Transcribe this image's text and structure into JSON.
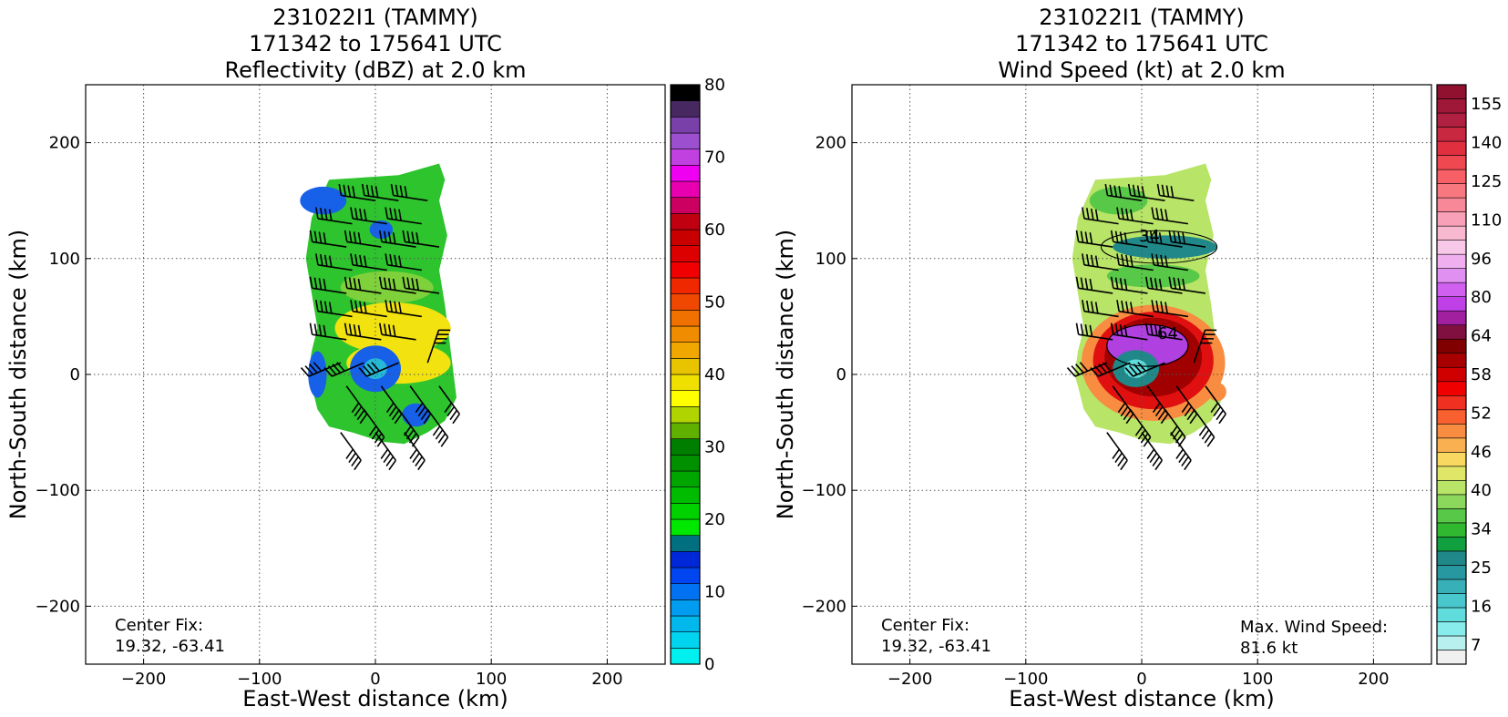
{
  "chart_data": [
    {
      "type": "heatmap",
      "title_lines": [
        "231022I1 (TAMMY)",
        "171342 to 175641 UTC",
        "Reflectivity (dBZ) at 2.0 km"
      ],
      "xlabel": "East-West distance (km)",
      "ylabel": "North-South distance (km)",
      "xlim": [
        -250,
        250
      ],
      "ylim": [
        -250,
        250
      ],
      "xticks": [
        -200,
        -100,
        0,
        100,
        200
      ],
      "yticks": [
        -200,
        -100,
        0,
        100,
        200
      ],
      "xtick_labels": [
        "−200",
        "−100",
        "0",
        "100",
        "200"
      ],
      "ytick_labels": [
        "−200",
        "−100",
        "0",
        "100",
        "200"
      ],
      "grid": true,
      "center_fix_label": "Center Fix:",
      "center_fix_value": "19.32, -63.41",
      "colorbar": {
        "min": 0,
        "max": 80,
        "tick_values": [
          0,
          10,
          20,
          30,
          40,
          50,
          60,
          70,
          80
        ],
        "tick_labels": [
          "0",
          "10",
          "20",
          "30",
          "40",
          "50",
          "60",
          "70",
          "80"
        ],
        "colors": [
          "#00f0f0",
          "#00d4ee",
          "#00b8ec",
          "#009cf0",
          "#0072f2",
          "#0046f0",
          "#0028d8",
          "#007080",
          "#00e800",
          "#00d200",
          "#00bc00",
          "#00a600",
          "#009000",
          "#007e00",
          "#60b000",
          "#b0d400",
          "#ffff00",
          "#f0e000",
          "#e8c400",
          "#f0a800",
          "#f08c00",
          "#f07000",
          "#f04800",
          "#f02800",
          "#f00000",
          "#dc0000",
          "#c80000",
          "#c00010",
          "#cc0060",
          "#e800b0",
          "#f000f0",
          "#c040e0",
          "#9c50d0",
          "#7840a8",
          "#482860",
          "#000000"
        ]
      },
      "echo_colors": {
        "green": "#2ec42e",
        "light_green": "#7fd13b",
        "yellow": "#f2e20f",
        "blue": "#1760e8",
        "cyan": "#25b9d8"
      }
    },
    {
      "type": "heatmap",
      "title_lines": [
        "231022I1 (TAMMY)",
        "171342 to 175641 UTC",
        "Wind Speed (kt) at 2.0 km"
      ],
      "xlabel": "East-West distance (km)",
      "ylabel": "North-South distance (km)",
      "xlim": [
        -250,
        250
      ],
      "ylim": [
        -250,
        250
      ],
      "xticks": [
        -200,
        -100,
        0,
        100,
        200
      ],
      "yticks": [
        -200,
        -100,
        0,
        100,
        200
      ],
      "xtick_labels": [
        "−200",
        "−100",
        "0",
        "100",
        "200"
      ],
      "ytick_labels": [
        "−200",
        "−100",
        "0",
        "100",
        "200"
      ],
      "grid": true,
      "center_fix_label": "Center Fix:",
      "center_fix_value": "19.32, -63.41",
      "max_wind_label": "Max. Wind Speed:",
      "max_wind_value": "81.6 kt",
      "contour_labels": [
        "34",
        "64"
      ],
      "colorbar": {
        "tick_labels": [
          "7",
          "16",
          "25",
          "34",
          "40",
          "46",
          "52",
          "58",
          "64",
          "80",
          "96",
          "110",
          "125",
          "140",
          "155"
        ],
        "colors": [
          "#f0f0f0",
          "#b8f0f0",
          "#88ecec",
          "#60dcdc",
          "#48c8cc",
          "#38b0b8",
          "#2898a0",
          "#208888",
          "#10a040",
          "#30b830",
          "#58c848",
          "#8cd85c",
          "#b8e468",
          "#e0e668",
          "#f8d860",
          "#f8b050",
          "#f88c40",
          "#f86030",
          "#f03020",
          "#f00000",
          "#d00000",
          "#a80000",
          "#800000",
          "#801040",
          "#a020a0",
          "#c040e8",
          "#d060f0",
          "#e090f0",
          "#f0b0f0",
          "#f8c8e8",
          "#f8b8d0",
          "#f8a0b8",
          "#f88898",
          "#f87880",
          "#f86068",
          "#f04850",
          "#e03040",
          "#c82840",
          "#b02040",
          "#a01838",
          "#901030"
        ]
      },
      "wind_colors": {
        "light_green": "#b8e468",
        "green": "#58c848",
        "teal": "#208888",
        "orange": "#f88c40",
        "red": "#e01010",
        "dark_red": "#a00000",
        "purple": "#b040e0",
        "cyan": "#60dcdc"
      }
    }
  ]
}
